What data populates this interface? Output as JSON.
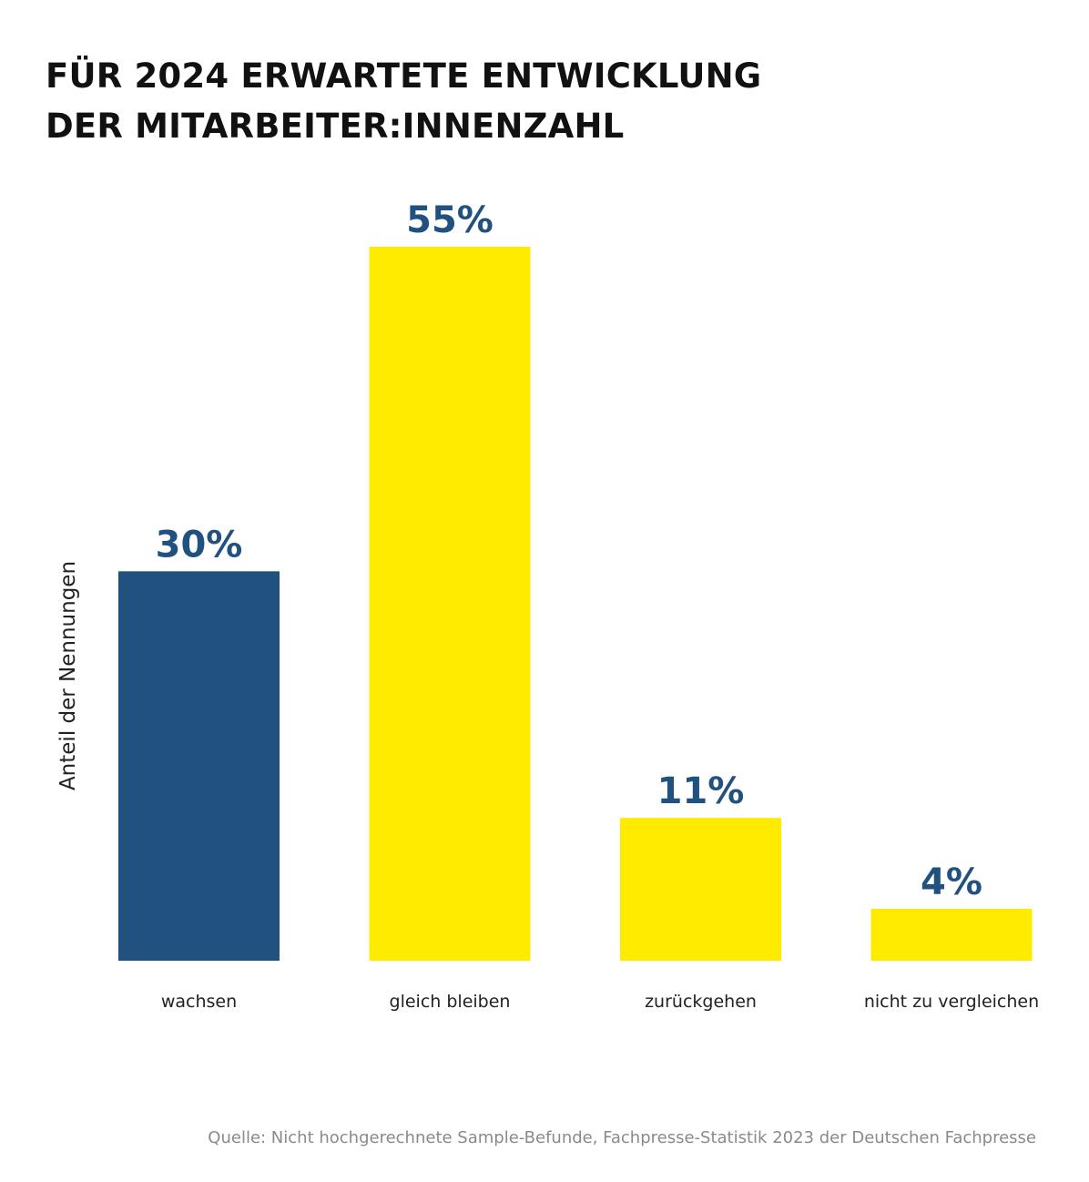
{
  "title_lines": [
    "FÜR 2024 ERWARTETE ENTWICKLUNG",
    "DER MITARBEITER:INNENZAHL"
  ],
  "source": "Quelle: Nicht hochgerechnete Sample-Befunde, Fachpresse-Statistik 2023 der Deutschen Fachpresse",
  "colors": {
    "highlight": "#21517f",
    "bar": "#ffeb00",
    "label": "#21517f",
    "text": "#222222"
  },
  "chart_data": {
    "type": "bar",
    "title": "FÜR 2024 ERWARTETE ENTWICKLUNG DER MITARBEITER:INNENZAHL",
    "ylabel": "Anteil der Nennungen",
    "xlabel": "",
    "categories": [
      "wachsen",
      "gleich bleiben",
      "zurückgehen",
      "nicht zu vergleichen"
    ],
    "values": [
      30,
      55,
      11,
      4
    ],
    "value_labels": [
      "30%",
      "55%",
      "11%",
      "4%"
    ],
    "unit": "%",
    "highlight_index": 0,
    "ylim": [
      0,
      55
    ],
    "grid": false,
    "legend": "none"
  }
}
